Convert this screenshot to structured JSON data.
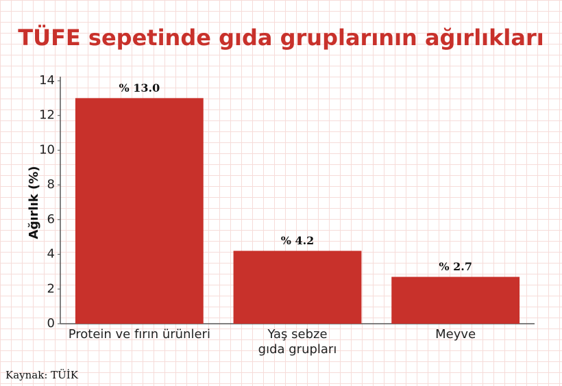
{
  "chart_data": {
    "type": "bar",
    "title": "TÜFE sepetinde gıda gruplarının ağırlıkları",
    "y_label": "Ağırlık (%)",
    "categories": [
      "Protein ve fırın ürünleri",
      "Yaş sebze gıda grupları",
      "Meyve"
    ],
    "values": [
      13.0,
      4.2,
      2.7
    ],
    "value_labels": [
      "% 13.0",
      "% 4.2",
      "% 2.7"
    ],
    "color": "#c8312b",
    "ylim": [
      0,
      14
    ],
    "yticks": [
      0,
      2,
      4,
      6,
      8,
      10,
      12,
      14
    ],
    "grid": false,
    "source": "Kaynak: TÜİK"
  }
}
